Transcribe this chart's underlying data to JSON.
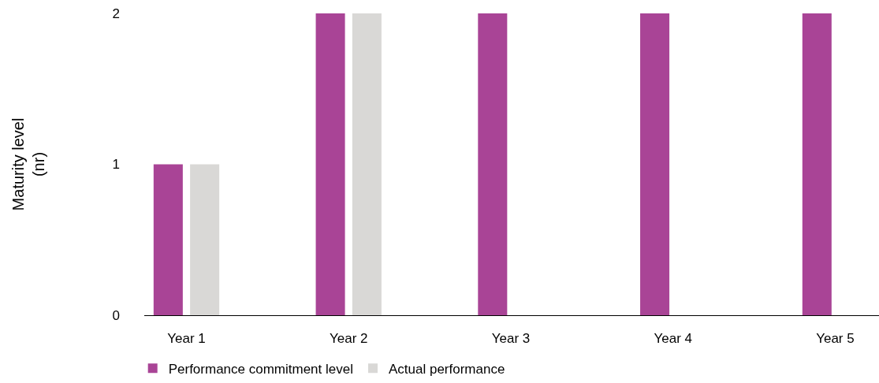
{
  "chart_data": {
    "type": "bar",
    "ylabel": "Maturity level\n(nr)",
    "categories": [
      "Year 1",
      "Year 2",
      "Year 3",
      "Year 4",
      "Year 5"
    ],
    "series": [
      {
        "name": "Performance commitment level",
        "color": "#a94496",
        "values": [
          1,
          2,
          2,
          2,
          2
        ]
      },
      {
        "name": "Actual performance",
        "color": "#d9d8d6",
        "values": [
          1,
          2,
          null,
          null,
          null
        ]
      }
    ],
    "ylim": [
      0,
      2
    ],
    "yticks": [
      0,
      1,
      2
    ],
    "legend": "bottom left"
  }
}
